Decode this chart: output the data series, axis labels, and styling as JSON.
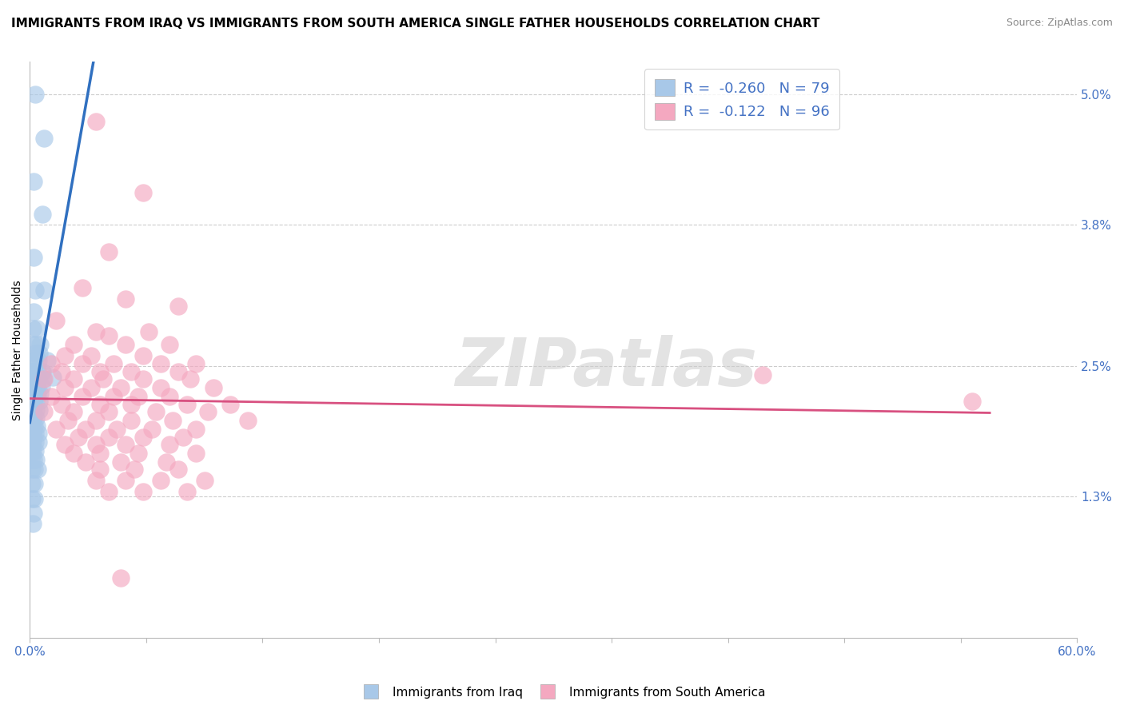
{
  "title": "IMMIGRANTS FROM IRAQ VS IMMIGRANTS FROM SOUTH AMERICA SINGLE FATHER HOUSEHOLDS CORRELATION CHART",
  "source": "Source: ZipAtlas.com",
  "ylabel": "Single Father Households",
  "right_yticks": [
    1.3,
    2.5,
    3.8,
    5.0
  ],
  "right_ytick_labels": [
    "1.3%",
    "2.5%",
    "3.8%",
    "5.0%"
  ],
  "legend_entries": [
    {
      "label": "Immigrants from Iraq",
      "R": -0.26,
      "N": 79,
      "color": "#a8c8e8"
    },
    {
      "label": "Immigrants from South America",
      "R": -0.122,
      "N": 96,
      "color": "#f4a8c0"
    }
  ],
  "blue_scatter": [
    [
      0.3,
      5.0
    ],
    [
      0.8,
      4.6
    ],
    [
      0.2,
      4.2
    ],
    [
      0.7,
      3.9
    ],
    [
      0.2,
      3.5
    ],
    [
      0.3,
      3.2
    ],
    [
      0.8,
      3.2
    ],
    [
      0.2,
      3.0
    ],
    [
      0.15,
      2.85
    ],
    [
      0.4,
      2.85
    ],
    [
      0.15,
      2.7
    ],
    [
      0.35,
      2.7
    ],
    [
      0.6,
      2.7
    ],
    [
      0.1,
      2.55
    ],
    [
      0.25,
      2.55
    ],
    [
      0.5,
      2.55
    ],
    [
      0.1,
      2.45
    ],
    [
      0.25,
      2.45
    ],
    [
      0.45,
      2.45
    ],
    [
      0.7,
      2.45
    ],
    [
      0.05,
      2.38
    ],
    [
      0.15,
      2.38
    ],
    [
      0.3,
      2.38
    ],
    [
      0.5,
      2.38
    ],
    [
      0.75,
      2.38
    ],
    [
      0.05,
      2.32
    ],
    [
      0.15,
      2.32
    ],
    [
      0.28,
      2.32
    ],
    [
      0.45,
      2.32
    ],
    [
      0.65,
      2.32
    ],
    [
      0.05,
      2.25
    ],
    [
      0.15,
      2.25
    ],
    [
      0.28,
      2.25
    ],
    [
      0.42,
      2.25
    ],
    [
      0.6,
      2.25
    ],
    [
      0.05,
      2.18
    ],
    [
      0.12,
      2.18
    ],
    [
      0.22,
      2.18
    ],
    [
      0.35,
      2.18
    ],
    [
      0.52,
      2.18
    ],
    [
      0.05,
      2.1
    ],
    [
      0.12,
      2.1
    ],
    [
      0.22,
      2.1
    ],
    [
      0.35,
      2.1
    ],
    [
      0.52,
      2.1
    ],
    [
      0.05,
      2.02
    ],
    [
      0.12,
      2.02
    ],
    [
      0.22,
      2.02
    ],
    [
      0.35,
      2.02
    ],
    [
      0.05,
      1.95
    ],
    [
      0.14,
      1.95
    ],
    [
      0.25,
      1.95
    ],
    [
      0.4,
      1.95
    ],
    [
      0.08,
      1.88
    ],
    [
      0.18,
      1.88
    ],
    [
      0.3,
      1.88
    ],
    [
      0.47,
      1.88
    ],
    [
      0.08,
      1.8
    ],
    [
      0.18,
      1.8
    ],
    [
      0.3,
      1.8
    ],
    [
      0.47,
      1.8
    ],
    [
      0.08,
      1.72
    ],
    [
      0.18,
      1.72
    ],
    [
      0.32,
      1.72
    ],
    [
      0.08,
      1.64
    ],
    [
      0.2,
      1.64
    ],
    [
      0.36,
      1.64
    ],
    [
      0.12,
      1.55
    ],
    [
      0.25,
      1.55
    ],
    [
      0.42,
      1.55
    ],
    [
      0.12,
      1.42
    ],
    [
      0.25,
      1.42
    ],
    [
      0.12,
      1.28
    ],
    [
      0.25,
      1.28
    ],
    [
      0.2,
      1.15
    ],
    [
      0.15,
      1.05
    ],
    [
      0.3,
      2.62
    ],
    [
      0.55,
      2.62
    ],
    [
      1.0,
      2.55
    ],
    [
      1.3,
      2.4
    ]
  ],
  "pink_scatter": [
    [
      3.8,
      4.75
    ],
    [
      6.5,
      4.1
    ],
    [
      4.5,
      3.55
    ],
    [
      3.0,
      3.22
    ],
    [
      5.5,
      3.12
    ],
    [
      8.5,
      3.05
    ],
    [
      1.5,
      2.92
    ],
    [
      3.8,
      2.82
    ],
    [
      6.8,
      2.82
    ],
    [
      4.5,
      2.78
    ],
    [
      2.5,
      2.7
    ],
    [
      5.5,
      2.7
    ],
    [
      8.0,
      2.7
    ],
    [
      2.0,
      2.6
    ],
    [
      3.5,
      2.6
    ],
    [
      6.5,
      2.6
    ],
    [
      1.2,
      2.52
    ],
    [
      3.0,
      2.52
    ],
    [
      4.8,
      2.52
    ],
    [
      7.5,
      2.52
    ],
    [
      9.5,
      2.52
    ],
    [
      1.8,
      2.45
    ],
    [
      4.0,
      2.45
    ],
    [
      5.8,
      2.45
    ],
    [
      8.5,
      2.45
    ],
    [
      0.8,
      2.38
    ],
    [
      2.5,
      2.38
    ],
    [
      4.2,
      2.38
    ],
    [
      6.5,
      2.38
    ],
    [
      9.2,
      2.38
    ],
    [
      2.0,
      2.3
    ],
    [
      3.5,
      2.3
    ],
    [
      5.2,
      2.3
    ],
    [
      7.5,
      2.3
    ],
    [
      10.5,
      2.3
    ],
    [
      1.2,
      2.22
    ],
    [
      3.0,
      2.22
    ],
    [
      4.8,
      2.22
    ],
    [
      6.2,
      2.22
    ],
    [
      8.0,
      2.22
    ],
    [
      1.8,
      2.15
    ],
    [
      4.0,
      2.15
    ],
    [
      5.8,
      2.15
    ],
    [
      9.0,
      2.15
    ],
    [
      11.5,
      2.15
    ],
    [
      0.8,
      2.08
    ],
    [
      2.5,
      2.08
    ],
    [
      4.5,
      2.08
    ],
    [
      7.2,
      2.08
    ],
    [
      10.2,
      2.08
    ],
    [
      2.2,
      2.0
    ],
    [
      3.8,
      2.0
    ],
    [
      5.8,
      2.0
    ],
    [
      8.2,
      2.0
    ],
    [
      12.5,
      2.0
    ],
    [
      1.5,
      1.92
    ],
    [
      3.2,
      1.92
    ],
    [
      5.0,
      1.92
    ],
    [
      7.0,
      1.92
    ],
    [
      9.5,
      1.92
    ],
    [
      2.8,
      1.85
    ],
    [
      4.5,
      1.85
    ],
    [
      6.5,
      1.85
    ],
    [
      8.8,
      1.85
    ],
    [
      2.0,
      1.78
    ],
    [
      3.8,
      1.78
    ],
    [
      5.5,
      1.78
    ],
    [
      8.0,
      1.78
    ],
    [
      2.5,
      1.7
    ],
    [
      4.0,
      1.7
    ],
    [
      6.2,
      1.7
    ],
    [
      9.5,
      1.7
    ],
    [
      3.2,
      1.62
    ],
    [
      5.2,
      1.62
    ],
    [
      7.8,
      1.62
    ],
    [
      4.0,
      1.55
    ],
    [
      6.0,
      1.55
    ],
    [
      8.5,
      1.55
    ],
    [
      3.8,
      1.45
    ],
    [
      5.5,
      1.45
    ],
    [
      7.5,
      1.45
    ],
    [
      10.0,
      1.45
    ],
    [
      4.5,
      1.35
    ],
    [
      6.5,
      1.35
    ],
    [
      9.0,
      1.35
    ],
    [
      5.2,
      0.55
    ],
    [
      42.0,
      2.42
    ],
    [
      54.0,
      2.18
    ]
  ],
  "watermark_text": "ZIPatlas",
  "blue_color": "#a8c8e8",
  "pink_color": "#f4a8c0",
  "blue_line_color": "#3070c0",
  "pink_line_color": "#d85080",
  "axis_color": "#4472c4",
  "xmin": 0.0,
  "xmax": 60.0,
  "ymin": 0.0,
  "ymax": 5.3,
  "grid_color": "#cccccc",
  "title_fontsize": 11,
  "source_fontsize": 9
}
